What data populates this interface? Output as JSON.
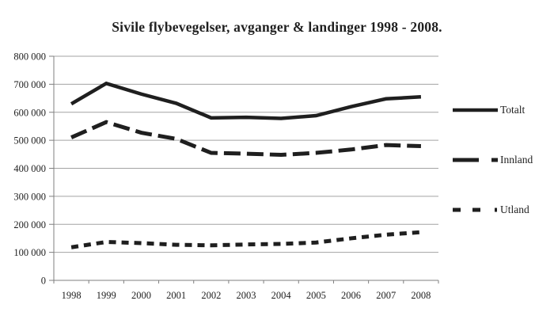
{
  "chart_data": {
    "type": "line",
    "title": "Sivile flybevegelser, avganger & landinger 1998 - 2008.",
    "categories": [
      "1998",
      "1999",
      "2000",
      "2001",
      "2002",
      "2003",
      "2004",
      "2005",
      "2006",
      "2007",
      "2008"
    ],
    "series": [
      {
        "name": "Totalt",
        "dash": "solid",
        "values": [
          630000,
          703000,
          665000,
          632000,
          580000,
          582000,
          578000,
          588000,
          620000,
          648000,
          655000
        ]
      },
      {
        "name": "Innland",
        "dash": "long-dash",
        "values": [
          510000,
          565000,
          527000,
          505000,
          455000,
          452000,
          448000,
          455000,
          467000,
          483000,
          479000
        ]
      },
      {
        "name": "Utland",
        "dash": "short-dash",
        "values": [
          118000,
          137000,
          133000,
          127000,
          125000,
          128000,
          130000,
          135000,
          150000,
          163000,
          172000
        ]
      }
    ],
    "xlabel": "",
    "ylabel": "",
    "ylim": [
      0,
      800000
    ],
    "ytick_step": 100000,
    "ytick_labels": [
      "0",
      "100 000",
      "200 000",
      "300 000",
      "400 000",
      "500 000",
      "600 000",
      "700 000",
      "800 000"
    ],
    "grid": true,
    "legend_position": "right",
    "colors": {
      "line": "#1f1f1f",
      "grid": "#a3a3a3",
      "axis": "#7f7f7f",
      "text": "#1f1f1f",
      "background": "#ffffff"
    }
  }
}
